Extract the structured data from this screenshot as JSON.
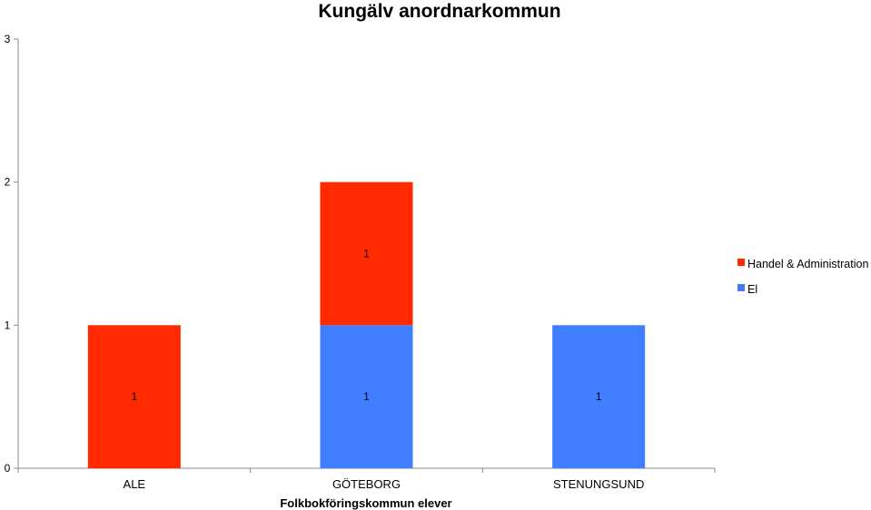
{
  "chart_data": {
    "type": "bar",
    "stacked": true,
    "title": "Kungälv anordnarkommun",
    "xlabel": "Folkbokföringskommun elever",
    "ylabel": "",
    "categories": [
      "ALE",
      "GÖTEBORG",
      "STENUNGSUND"
    ],
    "ylim": [
      0,
      3
    ],
    "yticks": [
      0,
      1,
      2,
      3
    ],
    "grid": false,
    "legend_position": "right",
    "series": [
      {
        "name": "El",
        "color": "#3f7fff",
        "values": [
          0,
          1,
          1
        ]
      },
      {
        "name": "Handel & Administration",
        "color": "#ff2a00",
        "values": [
          1,
          1,
          0
        ]
      }
    ],
    "legend_order": [
      "Handel & Administration",
      "El"
    ],
    "data_labels": true
  }
}
